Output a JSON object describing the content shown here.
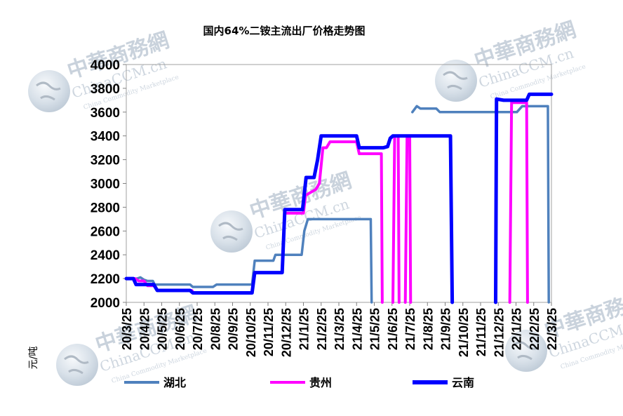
{
  "watermark": {
    "brand_cn": "中華商務網",
    "brand_en": "ChinaCCM.cn",
    "tagline": "China Commodity Marketplace"
  },
  "chart_data": {
    "type": "line",
    "title": "国内64%二铵主流出厂价格走势图",
    "ylabel": "元/吨",
    "xlabel": "",
    "ylim": [
      2000,
      4000
    ],
    "yticks": [
      2000,
      2200,
      2400,
      2600,
      2800,
      3000,
      3200,
      3400,
      3600,
      3800,
      4000
    ],
    "xlim": [
      0,
      24
    ],
    "categories": [
      "20/3/25",
      "20/4/25",
      "20/5/25",
      "20/6/25",
      "20/7/25",
      "20/8/25",
      "20/9/25",
      "20/10/25",
      "20/11/25",
      "20/12/25",
      "21/1/25",
      "21/2/25",
      "21/3/25",
      "21/4/25",
      "21/5/25",
      "21/6/25",
      "21/7/25",
      "21/8/25",
      "21/9/25",
      "21/10/25",
      "21/11/25",
      "21/12/25",
      "22/1/25",
      "22/2/25",
      "22/3/25"
    ],
    "legend_position": "bottom",
    "grid": false,
    "series": [
      {
        "name": "湖北",
        "color": "#4f81bd",
        "points": [
          [
            0,
            2200
          ],
          [
            0.6,
            2200
          ],
          [
            0.8,
            2210
          ],
          [
            1.0,
            2190
          ],
          [
            1.2,
            2180
          ],
          [
            1.5,
            2180
          ],
          [
            1.6,
            2150
          ],
          [
            3.6,
            2150
          ],
          [
            3.75,
            2130
          ],
          [
            4.9,
            2130
          ],
          [
            5.1,
            2150
          ],
          [
            7.1,
            2150
          ],
          [
            7.25,
            2350
          ],
          [
            8.3,
            2350
          ],
          [
            8.42,
            2400
          ],
          [
            9.9,
            2400
          ],
          [
            10.05,
            2600
          ],
          [
            10.25,
            2700
          ],
          [
            13.8,
            2700
          ],
          [
            13.85,
            2000
          ],
          null,
          [
            16.15,
            3600
          ],
          [
            16.4,
            3650
          ],
          [
            16.6,
            3630
          ],
          [
            17.5,
            3630
          ],
          [
            17.7,
            3600
          ],
          [
            22.05,
            3600
          ],
          [
            22.35,
            3650
          ],
          [
            23.8,
            3650
          ],
          [
            23.85,
            2000
          ]
        ]
      },
      {
        "name": "贵州",
        "color": "#ff00ff",
        "points": [
          [
            0,
            2200
          ],
          [
            0.5,
            2200
          ],
          [
            0.7,
            2180
          ],
          [
            1.0,
            2180
          ],
          [
            1.2,
            2140
          ],
          [
            1.6,
            2140
          ],
          [
            1.75,
            2100
          ],
          [
            3.7,
            2100
          ],
          [
            3.8,
            2080
          ],
          [
            7.1,
            2080
          ],
          [
            7.25,
            2250
          ],
          [
            8.8,
            2250
          ],
          [
            8.95,
            2750
          ],
          [
            10.0,
            2750
          ],
          [
            10.12,
            2900
          ],
          [
            10.7,
            2950
          ],
          [
            10.9,
            3000
          ],
          [
            11.1,
            3300
          ],
          [
            11.3,
            3300
          ],
          [
            11.5,
            3350
          ],
          [
            13.0,
            3350
          ],
          [
            13.15,
            3250
          ],
          [
            14.4,
            3250
          ],
          [
            14.45,
            2000
          ],
          null,
          [
            15.05,
            2000
          ],
          [
            15.15,
            3400
          ],
          [
            15.35,
            3400
          ],
          [
            15.4,
            2000
          ],
          null,
          [
            15.75,
            2000
          ],
          [
            15.85,
            3400
          ],
          [
            16.0,
            3400
          ],
          [
            16.05,
            2000
          ],
          null,
          [
            21.65,
            2000
          ],
          [
            21.75,
            3680
          ],
          [
            22.6,
            3680
          ],
          [
            22.65,
            2000
          ]
        ]
      },
      {
        "name": "云南",
        "color": "#0000ff",
        "points": [
          [
            0,
            2200
          ],
          [
            0.4,
            2200
          ],
          [
            0.55,
            2150
          ],
          [
            1.55,
            2150
          ],
          [
            1.75,
            2100
          ],
          [
            3.6,
            2100
          ],
          [
            3.75,
            2080
          ],
          [
            7.1,
            2080
          ],
          [
            7.25,
            2250
          ],
          [
            8.8,
            2250
          ],
          [
            8.95,
            2780
          ],
          [
            9.95,
            2780
          ],
          [
            10.15,
            3050
          ],
          [
            10.6,
            3050
          ],
          [
            10.8,
            3200
          ],
          [
            11.0,
            3400
          ],
          [
            13.0,
            3400
          ],
          [
            13.15,
            3300
          ],
          [
            14.5,
            3300
          ],
          [
            14.75,
            3310
          ],
          [
            14.9,
            3380
          ],
          [
            15.05,
            3400
          ],
          [
            18.3,
            3400
          ],
          [
            18.4,
            2000
          ],
          null,
          [
            20.85,
            2000
          ],
          [
            20.9,
            3710
          ],
          [
            21.3,
            3700
          ],
          [
            22.6,
            3700
          ],
          [
            22.75,
            3750
          ],
          [
            24.0,
            3750
          ]
        ]
      }
    ]
  }
}
